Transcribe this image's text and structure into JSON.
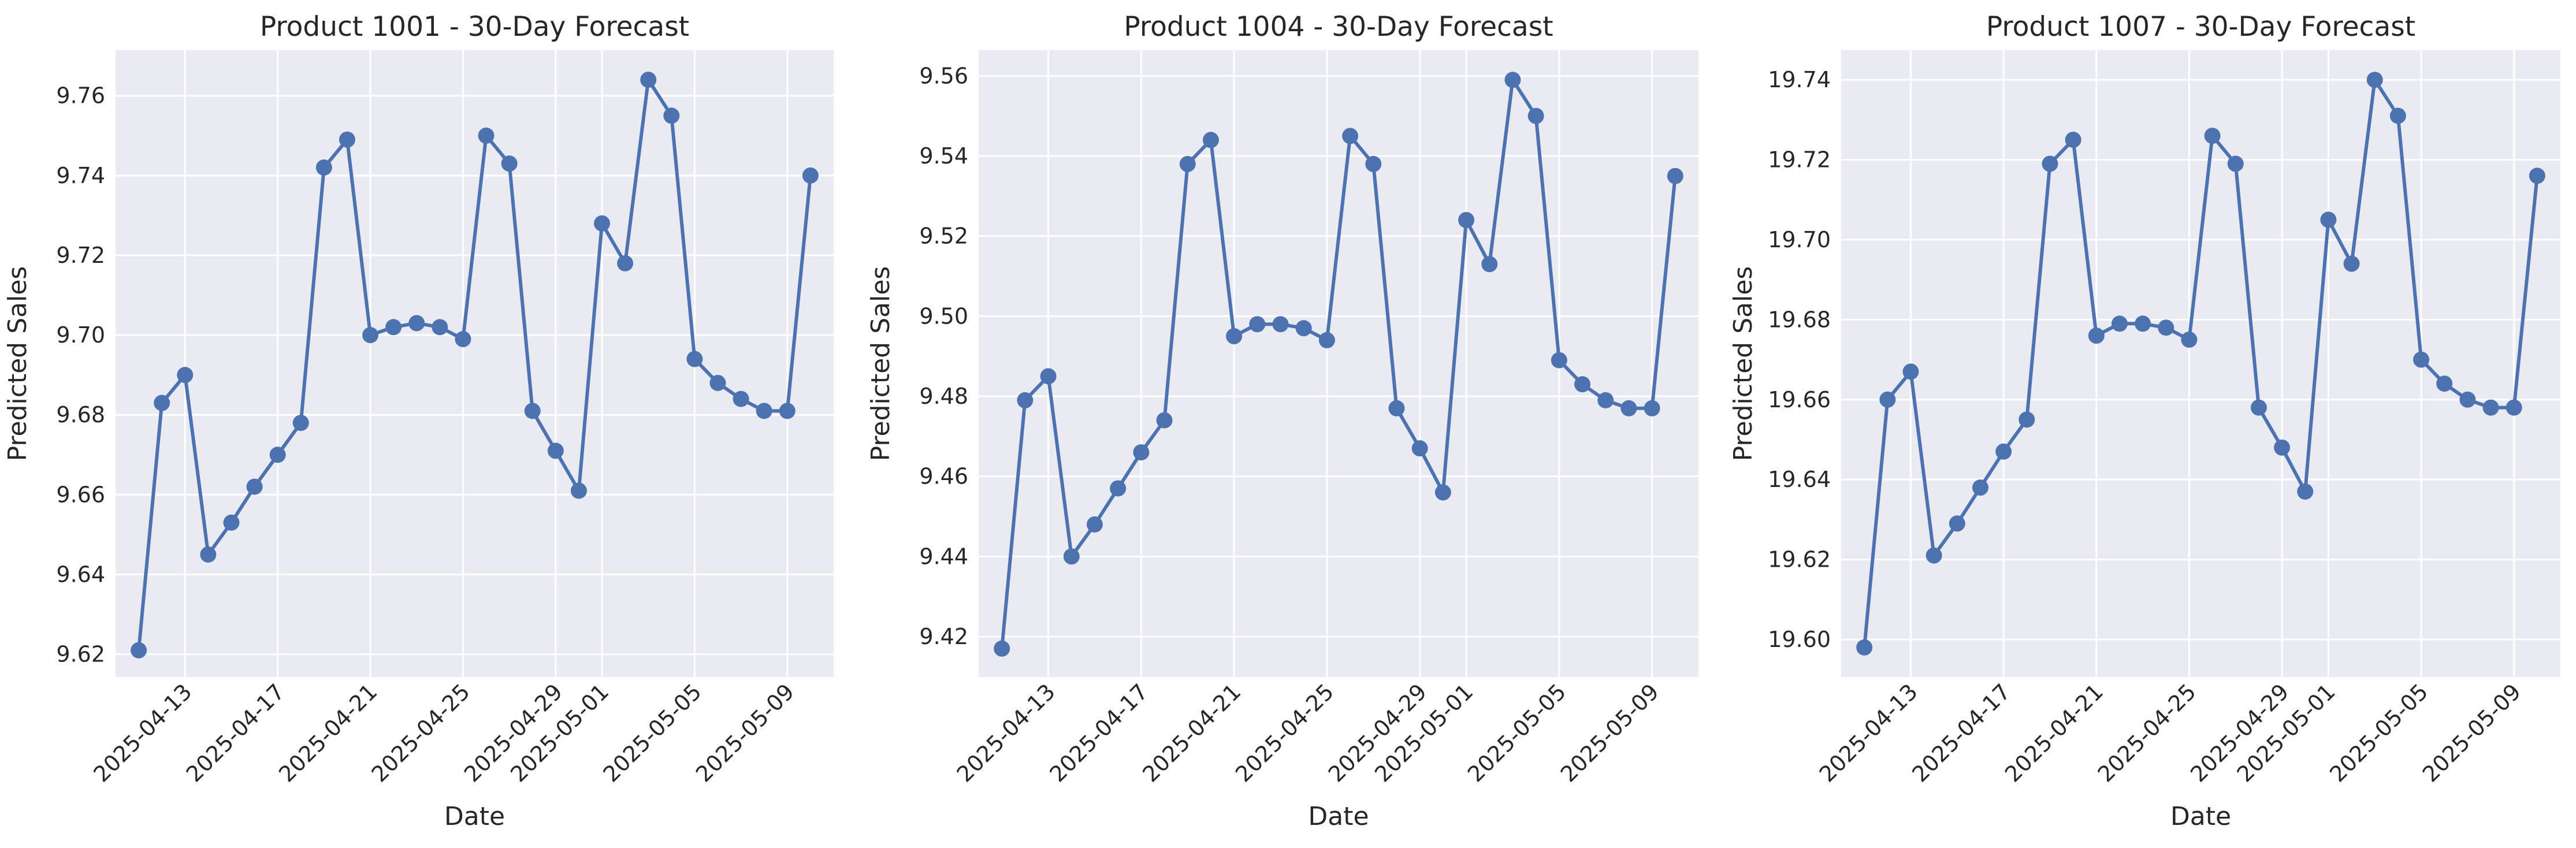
{
  "charts": [
    {
      "type": "line",
      "title": "Product 1001 - 30-Day Forecast",
      "xlabel": "Date",
      "ylabel": "Predicted Sales",
      "x": [
        "2025-04-11",
        "2025-04-12",
        "2025-04-13",
        "2025-04-14",
        "2025-04-15",
        "2025-04-16",
        "2025-04-17",
        "2025-04-18",
        "2025-04-19",
        "2025-04-20",
        "2025-04-21",
        "2025-04-22",
        "2025-04-23",
        "2025-04-24",
        "2025-04-25",
        "2025-04-26",
        "2025-04-27",
        "2025-04-28",
        "2025-04-29",
        "2025-04-30",
        "2025-05-01",
        "2025-05-02",
        "2025-05-03",
        "2025-05-04",
        "2025-05-05",
        "2025-05-06",
        "2025-05-07",
        "2025-05-08",
        "2025-05-09",
        "2025-05-10"
      ],
      "values": [
        9.621,
        9.683,
        9.69,
        9.645,
        9.653,
        9.662,
        9.67,
        9.678,
        9.742,
        9.749,
        9.7,
        9.702,
        9.703,
        9.702,
        9.699,
        9.75,
        9.743,
        9.681,
        9.671,
        9.661,
        9.728,
        9.718,
        9.764,
        9.755,
        9.694,
        9.688,
        9.684,
        9.681,
        9.681,
        9.74
      ],
      "yticks": [
        9.62,
        9.64,
        9.66,
        9.68,
        9.7,
        9.72,
        9.74,
        9.76
      ],
      "ytick_labels": [
        "9.62",
        "9.64",
        "9.66",
        "9.68",
        "9.70",
        "9.72",
        "9.74",
        "9.76"
      ],
      "xticks": [
        "2025-04-13",
        "2025-04-17",
        "2025-04-21",
        "2025-04-25",
        "2025-04-29",
        "2025-05-01",
        "2025-05-05",
        "2025-05-09"
      ],
      "ylim": [
        9.6143,
        9.7714
      ],
      "xlim": [
        "2025-04-10",
        "2025-05-11"
      ]
    },
    {
      "type": "line",
      "title": "Product 1004 - 30-Day Forecast",
      "xlabel": "Date",
      "ylabel": "Predicted Sales",
      "x": [
        "2025-04-11",
        "2025-04-12",
        "2025-04-13",
        "2025-04-14",
        "2025-04-15",
        "2025-04-16",
        "2025-04-17",
        "2025-04-18",
        "2025-04-19",
        "2025-04-20",
        "2025-04-21",
        "2025-04-22",
        "2025-04-23",
        "2025-04-24",
        "2025-04-25",
        "2025-04-26",
        "2025-04-27",
        "2025-04-28",
        "2025-04-29",
        "2025-04-30",
        "2025-05-01",
        "2025-05-02",
        "2025-05-03",
        "2025-05-04",
        "2025-05-05",
        "2025-05-06",
        "2025-05-07",
        "2025-05-08",
        "2025-05-09",
        "2025-05-10"
      ],
      "values": [
        9.417,
        9.479,
        9.485,
        9.44,
        9.448,
        9.457,
        9.466,
        9.474,
        9.538,
        9.544,
        9.495,
        9.498,
        9.498,
        9.497,
        9.494,
        9.545,
        9.538,
        9.477,
        9.467,
        9.456,
        9.524,
        9.513,
        9.559,
        9.55,
        9.489,
        9.483,
        9.479,
        9.477,
        9.477,
        9.535
      ],
      "yticks": [
        9.42,
        9.44,
        9.46,
        9.48,
        9.5,
        9.52,
        9.54,
        9.56
      ],
      "ytick_labels": [
        "9.42",
        "9.44",
        "9.46",
        "9.48",
        "9.50",
        "9.52",
        "9.54",
        "9.56"
      ],
      "xticks": [
        "2025-04-13",
        "2025-04-17",
        "2025-04-21",
        "2025-04-25",
        "2025-04-29",
        "2025-05-01",
        "2025-05-05",
        "2025-05-09"
      ],
      "ylim": [
        9.4099,
        9.5664
      ],
      "xlim": [
        "2025-04-10",
        "2025-05-11"
      ]
    },
    {
      "type": "line",
      "title": "Product 1007 - 30-Day Forecast",
      "xlabel": "Date",
      "ylabel": "Predicted Sales",
      "x": [
        "2025-04-11",
        "2025-04-12",
        "2025-04-13",
        "2025-04-14",
        "2025-04-15",
        "2025-04-16",
        "2025-04-17",
        "2025-04-18",
        "2025-04-19",
        "2025-04-20",
        "2025-04-21",
        "2025-04-22",
        "2025-04-23",
        "2025-04-24",
        "2025-04-25",
        "2025-04-26",
        "2025-04-27",
        "2025-04-28",
        "2025-04-29",
        "2025-04-30",
        "2025-05-01",
        "2025-05-02",
        "2025-05-03",
        "2025-05-04",
        "2025-05-05",
        "2025-05-06",
        "2025-05-07",
        "2025-05-08",
        "2025-05-09",
        "2025-05-10"
      ],
      "values": [
        19.598,
        19.66,
        19.667,
        19.621,
        19.629,
        19.638,
        19.647,
        19.655,
        19.719,
        19.725,
        19.676,
        19.679,
        19.679,
        19.678,
        19.675,
        19.726,
        19.719,
        19.658,
        19.648,
        19.637,
        19.705,
        19.694,
        19.74,
        19.731,
        19.67,
        19.664,
        19.66,
        19.658,
        19.658,
        19.716
      ],
      "yticks": [
        19.6,
        19.62,
        19.64,
        19.66,
        19.68,
        19.7,
        19.72,
        19.74
      ],
      "ytick_labels": [
        "19.60",
        "19.62",
        "19.64",
        "19.66",
        "19.68",
        "19.70",
        "19.72",
        "19.74"
      ],
      "xticks": [
        "2025-04-13",
        "2025-04-17",
        "2025-04-21",
        "2025-04-25",
        "2025-04-29",
        "2025-05-01",
        "2025-05-05",
        "2025-05-09"
      ],
      "ylim": [
        19.5906,
        19.7474
      ],
      "xlim": [
        "2025-04-10",
        "2025-05-11"
      ]
    }
  ],
  "colors": {
    "line": "#4c72b0",
    "axes_bg": "#eaeaf2",
    "grid": "#ffffff",
    "text": "#262626"
  }
}
